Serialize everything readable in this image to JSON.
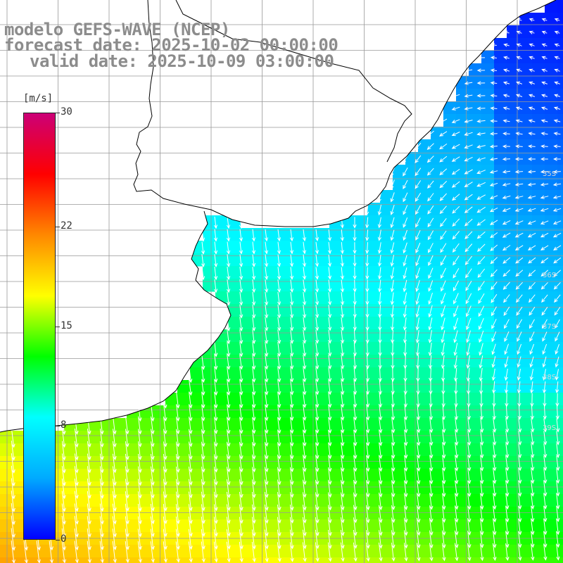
{
  "title": {
    "line1": "modelo GEFS-WAVE (NCEP)",
    "line2": "forecast date: 2025-10-02 00:00:00",
    "line3": "valid date: 2025-10-09 03:00:00"
  },
  "colorbar": {
    "units": "[m/s]",
    "min": 0,
    "max": 30,
    "ticks": [
      {
        "label": "30",
        "value": 30
      },
      {
        "label": "22",
        "value": 22
      },
      {
        "label": "15",
        "value": 15
      },
      {
        "label": "8",
        "value": 8
      },
      {
        "label": "0",
        "value": 0
      }
    ],
    "stops": [
      "#0000ff",
      "#00aaff",
      "#00ffff",
      "#00ff00",
      "#ffff00",
      "#ff8800",
      "#ff0000",
      "#cc0077"
    ]
  },
  "lat_labels": [
    "35S",
    "36S",
    "37S",
    "38S",
    "39S"
  ],
  "colors": {
    "land": "#ffffff",
    "coastline": "#000000",
    "grid": "#999999",
    "arrows": "#ffffff",
    "title_text": "#8c8c8c"
  }
}
